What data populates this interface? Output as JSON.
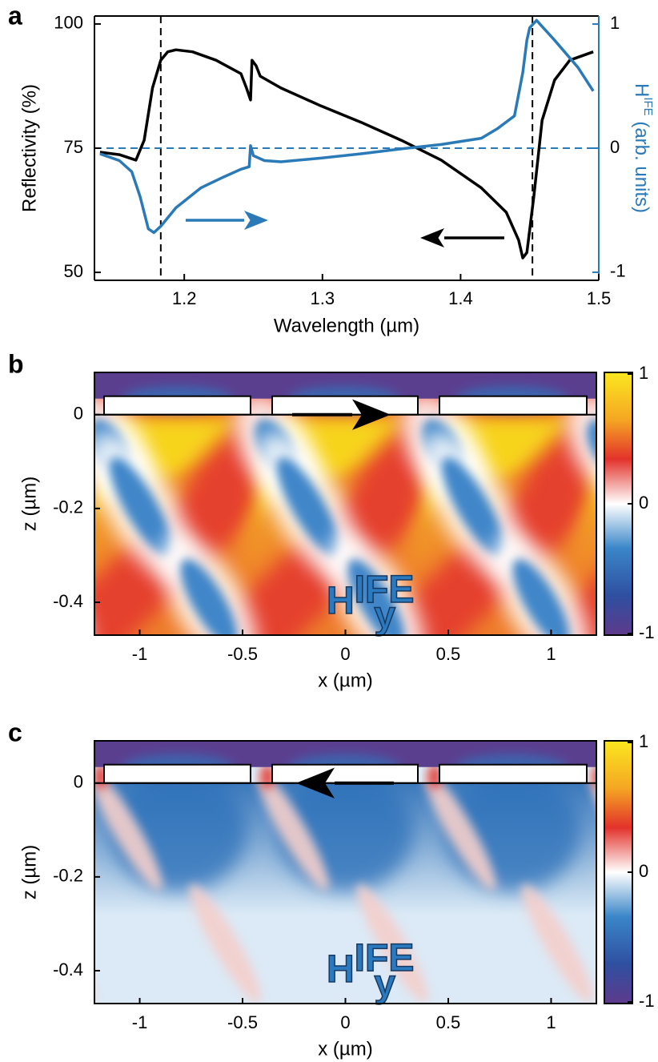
{
  "chart_data": [
    {
      "type": "line",
      "panel_label": "a",
      "xlabel": "Wavelength (µm)",
      "ylabel": "Reflectivity (%)",
      "y2label": {
        "base": "H",
        "sup": "IFE",
        "rest": " (arb. units)"
      },
      "xlim": [
        1.135,
        1.5
      ],
      "ylim": [
        48.4,
        101.6
      ],
      "y2lim": [
        -1.065,
        1.065
      ],
      "xticks": [
        1.2,
        1.3,
        1.4,
        1.5
      ],
      "yticks": [
        50,
        75,
        100
      ],
      "y2ticks": [
        -1,
        0,
        1
      ],
      "reference_lines": {
        "x": [
          1.183,
          1.452
        ],
        "y2": [
          0
        ]
      },
      "series": [
        {
          "color": "#000000",
          "axis": "y",
          "x": [
            1.139,
            1.153,
            1.165,
            1.171,
            1.177,
            1.183,
            1.188,
            1.194,
            1.206,
            1.223,
            1.241,
            1.245,
            1.248,
            1.249,
            1.252,
            1.255,
            1.27,
            1.299,
            1.328,
            1.357,
            1.386,
            1.415,
            1.433,
            1.442,
            1.445,
            1.448,
            1.453,
            1.459,
            1.468,
            1.479,
            1.496
          ],
          "values": [
            74.2,
            73.7,
            72.6,
            76.6,
            87.1,
            92.7,
            94.4,
            94.8,
            94.4,
            92.7,
            90,
            87.1,
            84.7,
            92.7,
            91.6,
            89.5,
            87.1,
            83.5,
            80.2,
            76.6,
            72.6,
            67,
            62.1,
            56.5,
            52.9,
            54,
            65.3,
            80.6,
            88.7,
            92.7,
            94.4
          ]
        },
        {
          "color": "#2a7ab8",
          "axis": "y2",
          "x": [
            1.139,
            1.153,
            1.162,
            1.168,
            1.174,
            1.178,
            1.183,
            1.194,
            1.212,
            1.229,
            1.241,
            1.247,
            1.248,
            1.25,
            1.258,
            1.27,
            1.299,
            1.328,
            1.357,
            1.386,
            1.415,
            1.427,
            1.439,
            1.445,
            1.448,
            1.45,
            1.455,
            1.468,
            1.485,
            1.496
          ],
          "values": [
            -0.045,
            -0.1,
            -0.19,
            -0.39,
            -0.65,
            -0.68,
            -0.63,
            -0.48,
            -0.32,
            -0.23,
            -0.17,
            -0.15,
            0.02,
            -0.06,
            -0.1,
            -0.11,
            -0.08,
            -0.045,
            -0.006,
            0.03,
            0.08,
            0.16,
            0.26,
            0.61,
            0.87,
            0.97,
            1.03,
            0.87,
            0.65,
            0.46
          ]
        }
      ]
    },
    {
      "type": "heatmap",
      "panel_label": "b",
      "variant": "strong",
      "xlabel": "x (µm)",
      "ylabel": "z (µm)",
      "field_label": {
        "base": "H",
        "sub": "y",
        "sup": "IFE"
      },
      "xlim": [
        -1.22,
        1.22
      ],
      "ylim": [
        -0.47,
        0.09
      ],
      "xticks": [
        -1,
        -0.5,
        0,
        0.5,
        1
      ],
      "yticks": [
        -0.4,
        -0.2,
        0
      ],
      "clim": [
        -1,
        1
      ],
      "cticks": [
        -1,
        0,
        1
      ]
    },
    {
      "type": "heatmap",
      "panel_label": "c",
      "variant": "weak",
      "xlabel": "x (µm)",
      "ylabel": "z (µm)",
      "field_label": {
        "base": "H",
        "sub": "y",
        "sup": "IFE"
      },
      "xlim": [
        -1.22,
        1.22
      ],
      "ylim": [
        -0.47,
        0.09
      ],
      "xticks": [
        -1,
        -0.5,
        0,
        0.5,
        1
      ],
      "yticks": [
        -0.4,
        -0.2,
        0
      ],
      "clim": [
        -1,
        1
      ],
      "cticks": [
        -1,
        0,
        1
      ]
    }
  ]
}
